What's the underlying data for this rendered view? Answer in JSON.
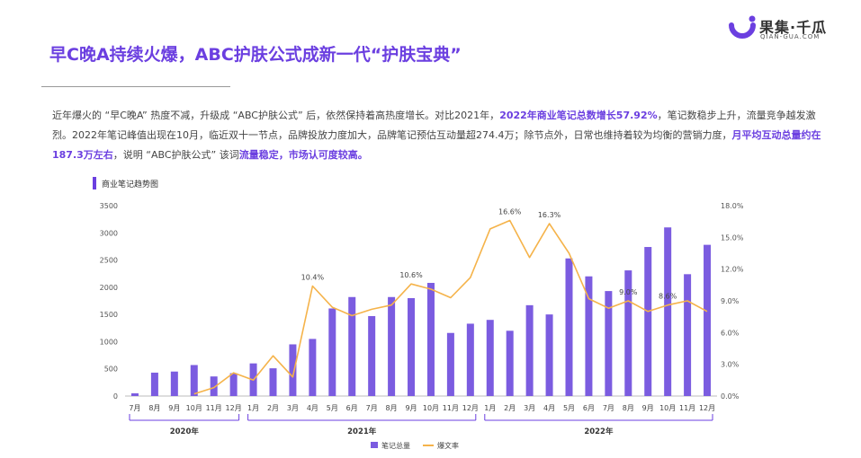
{
  "brand": {
    "name": "果集·千瓜",
    "sub": "QIAN-GUA.COM",
    "color": "#6b3fe0"
  },
  "title": "早C晚A持续火爆，ABC护肤公式成新一代“护肤宝典”",
  "paragraph": [
    {
      "text": "近年爆火的 “早C晚A” 热度不减，升级成 “ABC护肤公式” 后，依然保持着高热度增长。对比2021年，",
      "hl": false
    },
    {
      "text": "2022年商业笔记总数增长57.92%",
      "hl": true
    },
    {
      "text": "，笔记数稳步上升，流量竞争越发激烈。2022年笔记峰值出现在10月，临近双十一节点，品牌投放力度加大，品牌笔记预估互动量超274.4万；除节点外，日常也维持着较为均衡的营销力度，",
      "hl": false
    },
    {
      "text": "月平均互动总量约在187.3万左右",
      "hl": true
    },
    {
      "text": "，说明 “ABC护肤公式” 该词",
      "hl": false
    },
    {
      "text": "流量稳定，市场认可度较高。",
      "hl": true
    }
  ],
  "section_label": "商业笔记趋势图",
  "chart_data": {
    "type": "bar",
    "categories": [
      "7月",
      "8月",
      "9月",
      "10月",
      "11月",
      "12月",
      "1月",
      "2月",
      "3月",
      "4月",
      "5月",
      "6月",
      "7月",
      "8月",
      "9月",
      "10月",
      "11月",
      "12月",
      "1月",
      "2月",
      "3月",
      "4月",
      "5月",
      "6月",
      "7月",
      "8月",
      "9月",
      "10月",
      "11月",
      "12月"
    ],
    "year_groups": [
      {
        "label": "2020年",
        "start": 0,
        "end": 5
      },
      {
        "label": "2021年",
        "start": 6,
        "end": 17
      },
      {
        "label": "2022年",
        "start": 18,
        "end": 29
      }
    ],
    "series": [
      {
        "name": "笔记总量",
        "type": "bar",
        "axis": "left",
        "color": "#7b5ce0",
        "values": [
          50,
          430,
          450,
          570,
          360,
          420,
          600,
          510,
          950,
          1050,
          1610,
          1820,
          1470,
          1820,
          1800,
          2080,
          1160,
          1330,
          1400,
          1200,
          1670,
          1500,
          2530,
          2200,
          1930,
          2310,
          2740,
          3100,
          2240,
          2780
        ]
      },
      {
        "name": "爆文率",
        "type": "line",
        "axis": "right",
        "color": "#f5b34a",
        "values": [
          null,
          null,
          null,
          0.2,
          0.8,
          2.2,
          1.5,
          3.8,
          1.8,
          10.4,
          8.4,
          7.6,
          8.2,
          8.6,
          10.6,
          10.1,
          9.3,
          11.2,
          15.8,
          16.6,
          13.1,
          16.3,
          13.5,
          9.2,
          8.3,
          9.0,
          8.0,
          8.6,
          9.0,
          8.0
        ]
      }
    ],
    "data_labels": [
      {
        "index": 9,
        "text": "10.4%"
      },
      {
        "index": 14,
        "text": "10.6%"
      },
      {
        "index": 19,
        "text": "16.6%"
      },
      {
        "index": 21,
        "text": "16.3%"
      },
      {
        "index": 25,
        "text": "9.0%"
      },
      {
        "index": 27,
        "text": "8.6%"
      }
    ],
    "y_left": {
      "min": 0,
      "max": 3500,
      "ticks": [
        0,
        500,
        1000,
        1500,
        2000,
        2500,
        3000,
        3500
      ]
    },
    "y_right": {
      "min": 0,
      "max": 18,
      "ticks": [
        "0.0%",
        "3.0%",
        "6.0%",
        "9.0%",
        "12.0%",
        "15.0%",
        "18.0%"
      ]
    },
    "legend": {
      "placement": "bottom",
      "items": [
        "笔记总量",
        "爆文率"
      ]
    }
  }
}
